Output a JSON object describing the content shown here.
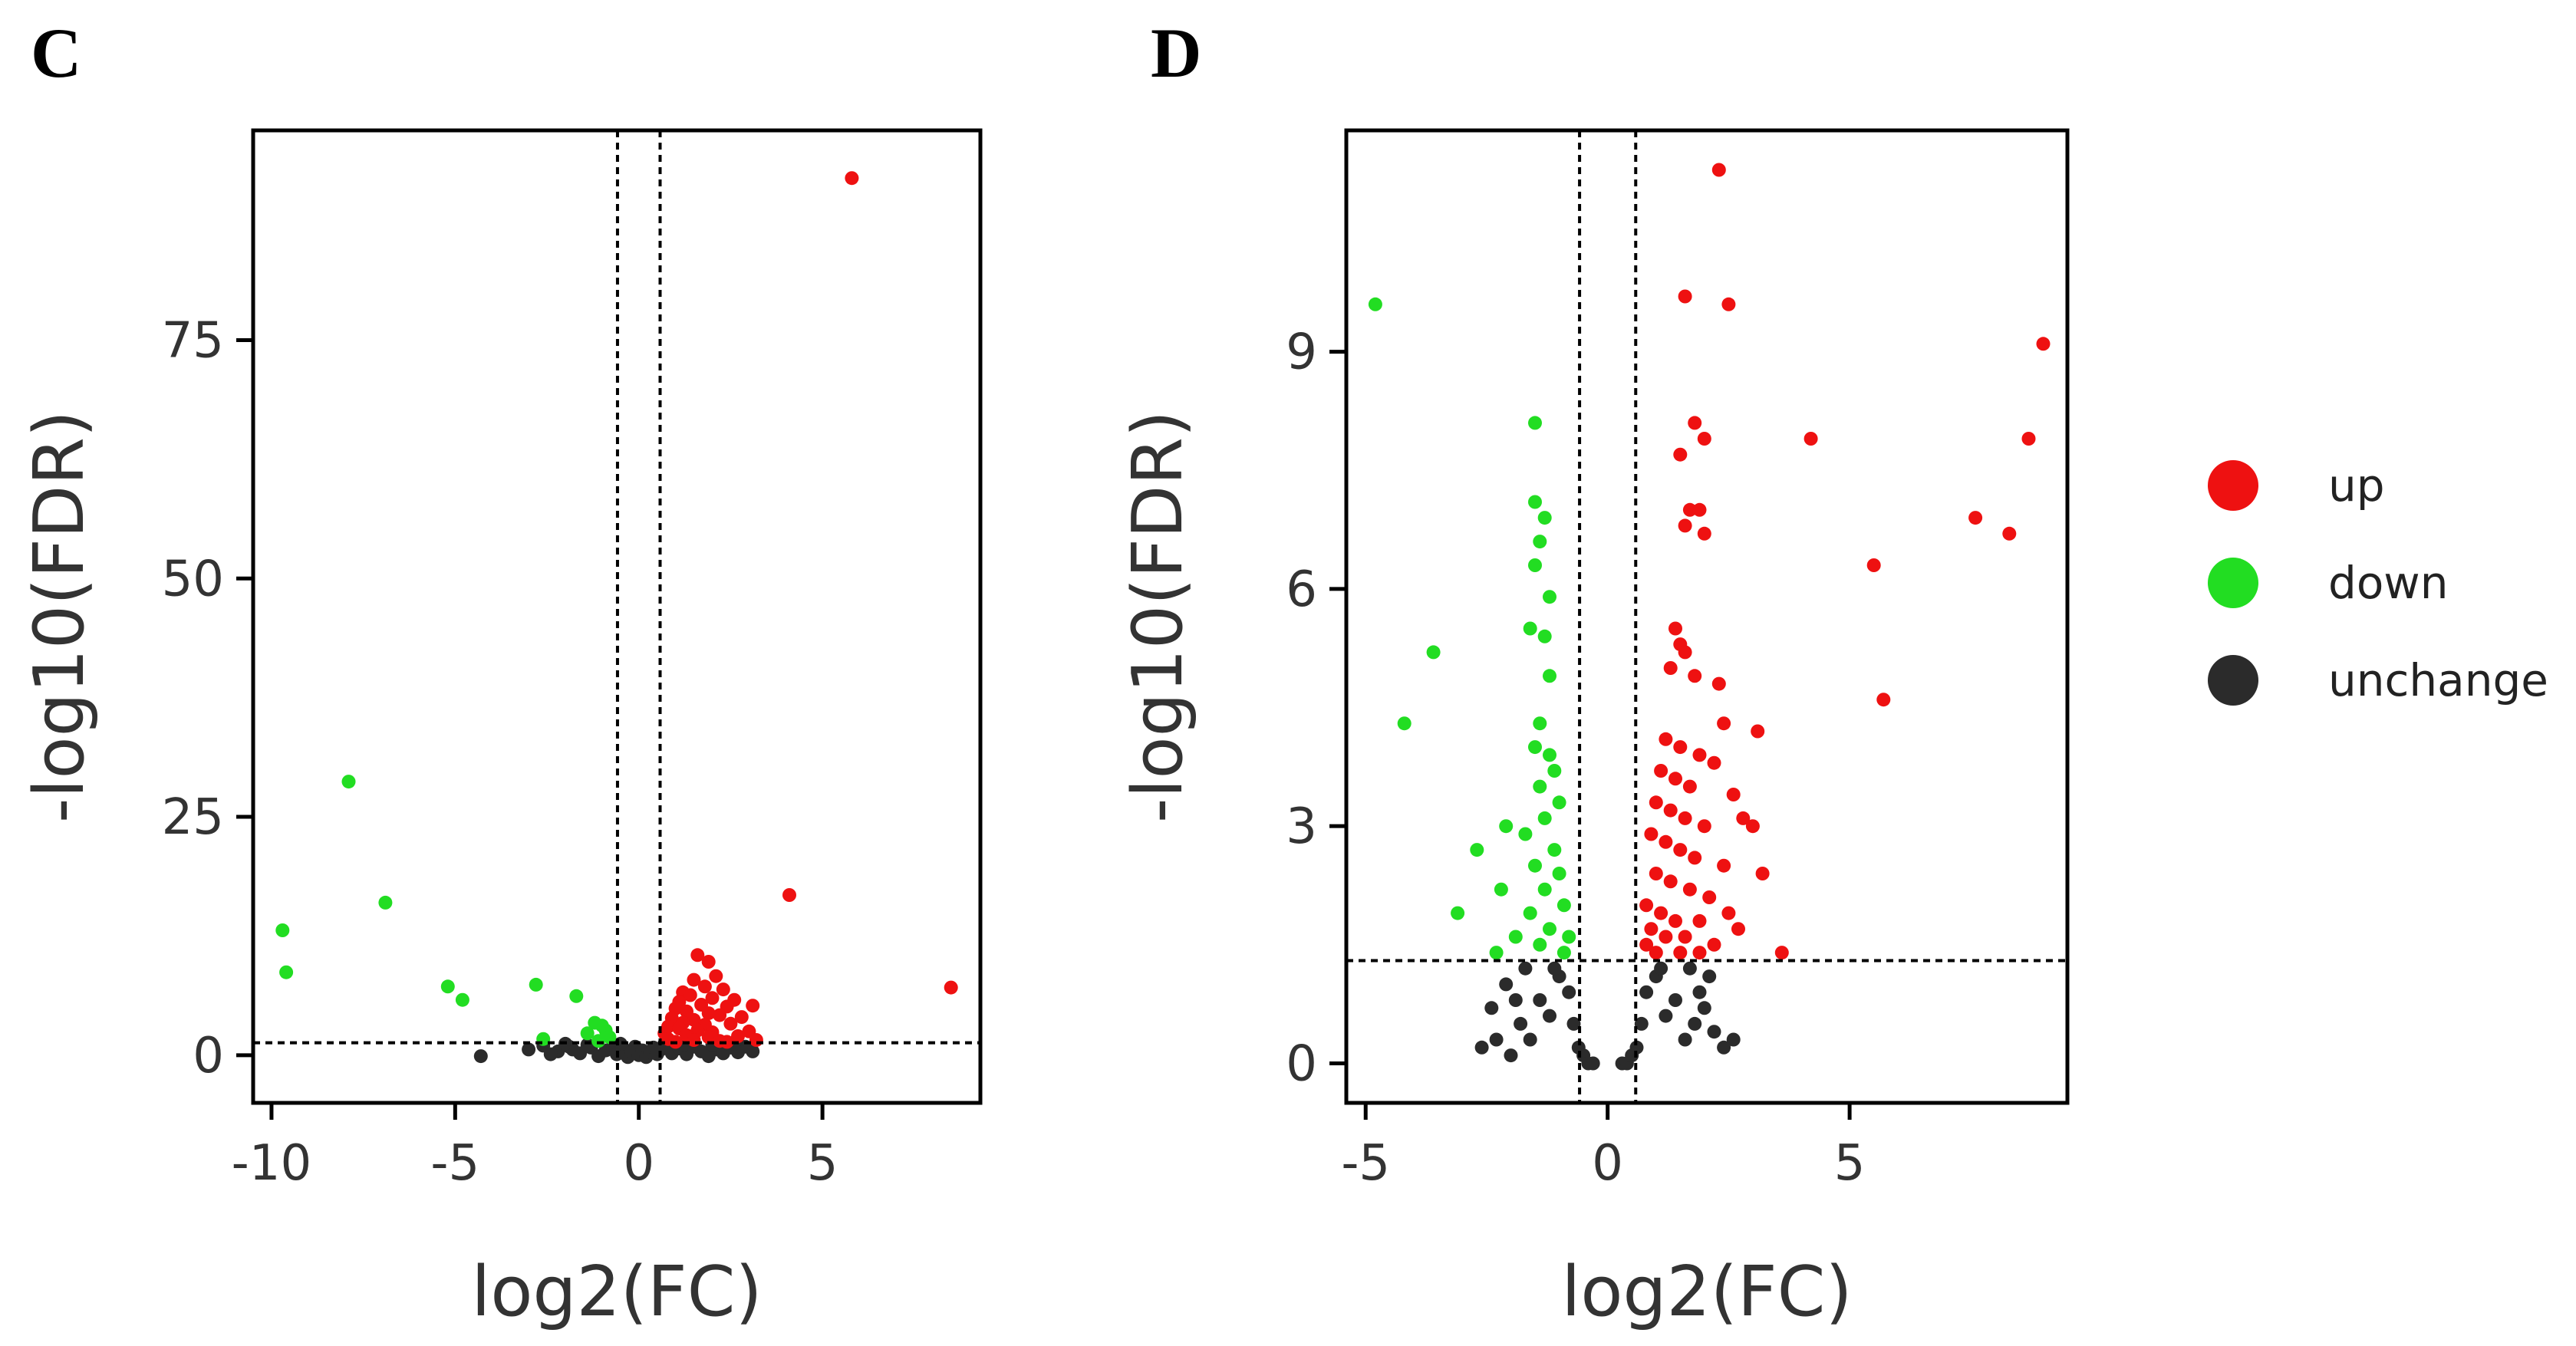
{
  "colors": {
    "up": "#ee1111",
    "down": "#22dd22",
    "unchange": "#2b2b2b",
    "axis": "#000000"
  },
  "legend": {
    "placement": "right",
    "items": [
      {
        "label": "up",
        "color": "#ee1111"
      },
      {
        "label": "down",
        "color": "#22dd22"
      },
      {
        "label": "unchange",
        "color": "#2b2b2b"
      }
    ]
  },
  "chart_data": [
    {
      "type": "scatter",
      "panel_label": "C",
      "title": "",
      "xlabel": "log2(FC)",
      "ylabel": "-log10(FDR)",
      "xlim": [
        -10.5,
        9.3
      ],
      "ylim": [
        -5,
        97
      ],
      "xticks": [
        -10,
        -5,
        0,
        5
      ],
      "xtick_labels": [
        "-10",
        "-5",
        "0",
        "5"
      ],
      "yticks": [
        0,
        25,
        50,
        75
      ],
      "ytick_labels": [
        "0",
        "25",
        "50",
        "75"
      ],
      "thresholds": {
        "fc_lines": [
          -0.58,
          0.58
        ],
        "fdr_line": 1.3
      },
      "grid": false,
      "series": [
        {
          "name": "up",
          "points": [
            [
              5.8,
              92
            ],
            [
              4.1,
              16.8
            ],
            [
              8.5,
              7.1
            ],
            [
              1.6,
              10.5
            ],
            [
              1.9,
              9.8
            ],
            [
              2.1,
              8.3
            ],
            [
              1.5,
              7.9
            ],
            [
              1.8,
              7.2
            ],
            [
              2.3,
              6.9
            ],
            [
              1.2,
              6.6
            ],
            [
              1.4,
              6.3
            ],
            [
              2.0,
              6.0
            ],
            [
              2.6,
              5.8
            ],
            [
              1.1,
              5.6
            ],
            [
              1.7,
              5.3
            ],
            [
              2.4,
              5.1
            ],
            [
              3.1,
              5.2
            ],
            [
              1.0,
              4.9
            ],
            [
              1.3,
              4.6
            ],
            [
              1.9,
              4.4
            ],
            [
              2.2,
              4.2
            ],
            [
              2.8,
              4.0
            ],
            [
              0.9,
              3.9
            ],
            [
              1.5,
              3.7
            ],
            [
              1.2,
              3.4
            ],
            [
              1.8,
              3.2
            ],
            [
              2.5,
              3.3
            ],
            [
              0.8,
              3.0
            ],
            [
              1.1,
              2.8
            ],
            [
              1.6,
              2.6
            ],
            [
              2.0,
              2.4
            ],
            [
              3.0,
              2.5
            ],
            [
              0.7,
              2.3
            ],
            [
              1.3,
              2.1
            ],
            [
              1.9,
              1.9
            ],
            [
              2.7,
              2.0
            ],
            [
              0.8,
              1.7
            ],
            [
              1.5,
              1.6
            ],
            [
              2.2,
              1.5
            ],
            [
              3.2,
              1.6
            ],
            [
              1.0,
              1.4
            ],
            [
              2.4,
              1.4
            ]
          ]
        },
        {
          "name": "down",
          "points": [
            [
              -7.9,
              28.7
            ],
            [
              -6.9,
              16
            ],
            [
              -9.7,
              13.1
            ],
            [
              -9.6,
              8.7
            ],
            [
              -5.2,
              7.2
            ],
            [
              -4.8,
              5.8
            ],
            [
              -2.8,
              7.4
            ],
            [
              -1.7,
              6.2
            ],
            [
              -1.2,
              3.4
            ],
            [
              -1.0,
              3.1
            ],
            [
              -0.9,
              2.6
            ],
            [
              -1.4,
              2.3
            ],
            [
              -0.8,
              1.9
            ],
            [
              -2.6,
              1.7
            ],
            [
              -1.1,
              1.5
            ]
          ]
        },
        {
          "name": "unchange",
          "points": [
            [
              -4.3,
              -0.1
            ],
            [
              -3.0,
              0.6
            ],
            [
              -2.6,
              1.0
            ],
            [
              -2.2,
              0.4
            ],
            [
              -1.9,
              0.9
            ],
            [
              -1.6,
              0.2
            ],
            [
              -1.3,
              0.8
            ],
            [
              -1.1,
              -0.1
            ],
            [
              -0.9,
              0.5
            ],
            [
              -0.7,
              1.0
            ],
            [
              -0.6,
              0.1
            ],
            [
              -0.4,
              0.6
            ],
            [
              -0.3,
              -0.2
            ],
            [
              -0.2,
              0.4
            ],
            [
              -0.1,
              0.9
            ],
            [
              0.0,
              0.0
            ],
            [
              0.1,
              0.5
            ],
            [
              0.2,
              -0.2
            ],
            [
              0.3,
              0.3
            ],
            [
              0.4,
              0.8
            ],
            [
              0.5,
              0.1
            ],
            [
              0.6,
              0.6
            ],
            [
              0.8,
              1.0
            ],
            [
              0.9,
              0.2
            ],
            [
              1.1,
              0.7
            ],
            [
              1.3,
              0.1
            ],
            [
              1.5,
              0.9
            ],
            [
              1.7,
              0.4
            ],
            [
              1.9,
              -0.1
            ],
            [
              2.1,
              0.6
            ],
            [
              2.3,
              0.2
            ],
            [
              2.5,
              0.8
            ],
            [
              2.7,
              0.3
            ],
            [
              2.9,
              0.9
            ],
            [
              3.1,
              0.4
            ],
            [
              -2.4,
              0.1
            ],
            [
              -1.8,
              0.6
            ],
            [
              -1.4,
              1.1
            ],
            [
              -0.5,
              1.2
            ],
            [
              0.7,
              1.2
            ],
            [
              1.2,
              1.1
            ],
            [
              2.0,
              1.1
            ],
            [
              2.6,
              1.2
            ],
            [
              -2.0,
              1.2
            ]
          ]
        }
      ]
    },
    {
      "type": "scatter",
      "panel_label": "D",
      "title": "",
      "xlabel": "log2(FC)",
      "ylabel": "-log10(FDR)",
      "xlim": [
        -5.4,
        9.5
      ],
      "ylim": [
        -0.5,
        11.8
      ],
      "xticks": [
        -5,
        0,
        5
      ],
      "xtick_labels": [
        "-5",
        "0",
        "5"
      ],
      "yticks": [
        0,
        3,
        6,
        9
      ],
      "ytick_labels": [
        "0",
        "3",
        "6",
        "9"
      ],
      "thresholds": {
        "fc_lines": [
          -0.58,
          0.58
        ],
        "fdr_line": 1.3
      },
      "grid": false,
      "series": [
        {
          "name": "up",
          "points": [
            [
              2.3,
              11.3
            ],
            [
              1.6,
              9.7
            ],
            [
              2.5,
              9.6
            ],
            [
              9.0,
              9.1
            ],
            [
              1.8,
              8.1
            ],
            [
              2.0,
              7.9
            ],
            [
              4.2,
              7.9
            ],
            [
              8.7,
              7.9
            ],
            [
              1.5,
              7.7
            ],
            [
              1.7,
              7.0
            ],
            [
              1.9,
              7.0
            ],
            [
              7.6,
              6.9
            ],
            [
              1.6,
              6.8
            ],
            [
              2.0,
              6.7
            ],
            [
              8.3,
              6.7
            ],
            [
              5.5,
              6.3
            ],
            [
              1.4,
              5.5
            ],
            [
              1.5,
              5.3
            ],
            [
              1.6,
              5.2
            ],
            [
              1.3,
              5.0
            ],
            [
              1.8,
              4.9
            ],
            [
              2.3,
              4.8
            ],
            [
              5.7,
              4.6
            ],
            [
              2.4,
              4.3
            ],
            [
              3.1,
              4.2
            ],
            [
              1.2,
              4.1
            ],
            [
              1.5,
              4.0
            ],
            [
              1.9,
              3.9
            ],
            [
              2.2,
              3.8
            ],
            [
              1.1,
              3.7
            ],
            [
              1.4,
              3.6
            ],
            [
              1.7,
              3.5
            ],
            [
              2.6,
              3.4
            ],
            [
              1.0,
              3.3
            ],
            [
              1.3,
              3.2
            ],
            [
              1.6,
              3.1
            ],
            [
              2.0,
              3.0
            ],
            [
              2.8,
              3.1
            ],
            [
              3.0,
              3.0
            ],
            [
              0.9,
              2.9
            ],
            [
              1.2,
              2.8
            ],
            [
              1.5,
              2.7
            ],
            [
              1.8,
              2.6
            ],
            [
              2.4,
              2.5
            ],
            [
              1.0,
              2.4
            ],
            [
              1.3,
              2.3
            ],
            [
              1.7,
              2.2
            ],
            [
              2.1,
              2.1
            ],
            [
              3.2,
              2.4
            ],
            [
              0.8,
              2.0
            ],
            [
              1.1,
              1.9
            ],
            [
              1.4,
              1.8
            ],
            [
              1.9,
              1.8
            ],
            [
              2.5,
              1.9
            ],
            [
              0.9,
              1.7
            ],
            [
              1.2,
              1.6
            ],
            [
              1.6,
              1.6
            ],
            [
              2.2,
              1.5
            ],
            [
              2.7,
              1.7
            ],
            [
              0.8,
              1.5
            ],
            [
              1.0,
              1.4
            ],
            [
              1.5,
              1.4
            ],
            [
              1.9,
              1.4
            ],
            [
              3.6,
              1.4
            ]
          ]
        },
        {
          "name": "down",
          "points": [
            [
              -4.8,
              9.6
            ],
            [
              -1.5,
              8.1
            ],
            [
              -1.5,
              7.1
            ],
            [
              -1.3,
              6.9
            ],
            [
              -1.4,
              6.6
            ],
            [
              -1.5,
              6.3
            ],
            [
              -1.2,
              5.9
            ],
            [
              -1.6,
              5.5
            ],
            [
              -1.3,
              5.4
            ],
            [
              -3.6,
              5.2
            ],
            [
              -1.2,
              4.9
            ],
            [
              -4.2,
              4.3
            ],
            [
              -1.4,
              4.3
            ],
            [
              -1.5,
              4.0
            ],
            [
              -1.2,
              3.9
            ],
            [
              -1.1,
              3.7
            ],
            [
              -1.4,
              3.5
            ],
            [
              -1.0,
              3.3
            ],
            [
              -2.1,
              3.0
            ],
            [
              -1.3,
              3.1
            ],
            [
              -1.7,
              2.9
            ],
            [
              -2.7,
              2.7
            ],
            [
              -1.1,
              2.7
            ],
            [
              -1.5,
              2.5
            ],
            [
              -1.0,
              2.4
            ],
            [
              -2.2,
              2.2
            ],
            [
              -1.3,
              2.2
            ],
            [
              -0.9,
              2.0
            ],
            [
              -1.6,
              1.9
            ],
            [
              -3.1,
              1.9
            ],
            [
              -1.2,
              1.7
            ],
            [
              -1.9,
              1.6
            ],
            [
              -0.8,
              1.6
            ],
            [
              -1.4,
              1.5
            ],
            [
              -2.3,
              1.4
            ],
            [
              -0.9,
              1.4
            ]
          ]
        },
        {
          "name": "unchange",
          "points": [
            [
              -2.6,
              0.2
            ],
            [
              -2.3,
              0.3
            ],
            [
              -2.0,
              0.1
            ],
            [
              -1.8,
              0.5
            ],
            [
              -1.6,
              0.3
            ],
            [
              -1.4,
              0.8
            ],
            [
              -1.2,
              0.6
            ],
            [
              -1.0,
              1.1
            ],
            [
              -0.8,
              0.9
            ],
            [
              -0.7,
              0.5
            ],
            [
              -0.6,
              0.2
            ],
            [
              -0.5,
              0.1
            ],
            [
              -0.4,
              0.0
            ],
            [
              -0.3,
              0.0
            ],
            [
              0.3,
              0.0
            ],
            [
              0.4,
              0.0
            ],
            [
              0.5,
              0.1
            ],
            [
              0.6,
              0.2
            ],
            [
              0.7,
              0.5
            ],
            [
              0.8,
              0.9
            ],
            [
              1.0,
              1.1
            ],
            [
              1.2,
              0.6
            ],
            [
              1.4,
              0.8
            ],
            [
              1.6,
              0.3
            ],
            [
              1.8,
              0.5
            ],
            [
              2.0,
              0.7
            ],
            [
              2.2,
              0.4
            ],
            [
              2.4,
              0.2
            ],
            [
              -2.4,
              0.7
            ],
            [
              -2.1,
              1.0
            ],
            [
              -1.7,
              1.2
            ],
            [
              -1.1,
              1.2
            ],
            [
              1.1,
              1.2
            ],
            [
              1.7,
              1.2
            ],
            [
              2.1,
              1.1
            ],
            [
              2.6,
              0.3
            ],
            [
              -1.9,
              0.8
            ],
            [
              1.9,
              0.9
            ]
          ]
        }
      ]
    }
  ]
}
